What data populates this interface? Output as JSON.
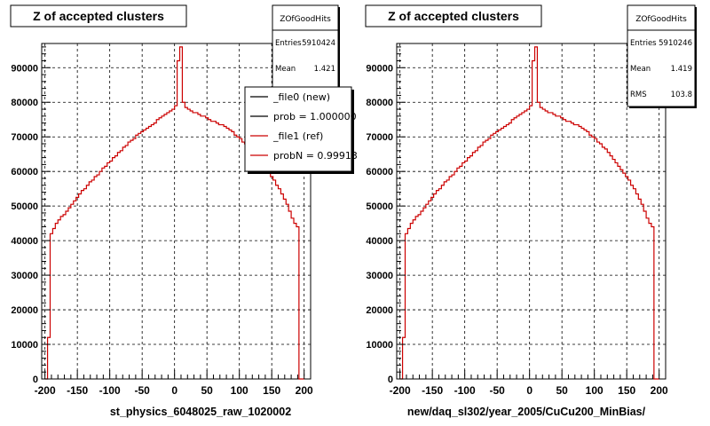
{
  "panels": [
    {
      "title": "Z of accepted clusters",
      "subtitle": "st_physics_6048025_raw_1020002",
      "stats": {
        "name": "ZOfGoodHits",
        "rows": [
          {
            "label": "Entries",
            "value": "5910424"
          },
          {
            "label": "Mean",
            "value": "1.421"
          }
        ]
      },
      "legend": [
        {
          "label": "_file0 (new)",
          "color": "#000000"
        },
        {
          "label": "prob = 1.000000",
          "color": "#000000"
        },
        {
          "label": "_file1 (ref)",
          "color": "#cc0000"
        },
        {
          "label": "probN = 0.99913",
          "color": "#cc0000"
        }
      ]
    },
    {
      "title": "Z of accepted clusters",
      "subtitle": "new/daq_sl302/year_2005/CuCu200_MinBias/",
      "stats": {
        "name": "ZOfGoodHits",
        "rows": [
          {
            "label": "Entries",
            "value": "5910246"
          },
          {
            "label": "Mean",
            "value": "1.419"
          },
          {
            "label": "RMS",
            "value": "103.8"
          }
        ]
      },
      "legend": []
    }
  ],
  "chart_data": [
    {
      "type": "histogram-step",
      "title": "Z of accepted clusters",
      "xlabel": "st_physics_6048025_raw_1020002",
      "ylabel": "",
      "xlim": [
        -205,
        210
      ],
      "ylim": [
        0,
        97000
      ],
      "xticks": [
        -200,
        -150,
        -100,
        -50,
        0,
        50,
        100,
        150,
        200
      ],
      "yticks": [
        0,
        10000,
        20000,
        30000,
        40000,
        50000,
        60000,
        70000,
        80000,
        90000
      ],
      "ytick_labels": [
        "0",
        "10000",
        "20000",
        "30000",
        "40000",
        "50000",
        "60000",
        "70000",
        "80000",
        "90000"
      ],
      "grid": true,
      "series": [
        {
          "color": "#cc0000",
          "bin_width": 4,
          "x_start": -200,
          "values": [
            0,
            12000,
            42000,
            43500,
            45000,
            46000,
            47000,
            47500,
            48500,
            49500,
            50500,
            51500,
            52500,
            53500,
            54500,
            55000,
            56000,
            57000,
            57500,
            58500,
            59000,
            60000,
            61000,
            61500,
            62500,
            63000,
            64000,
            64500,
            65500,
            66000,
            67000,
            67500,
            68500,
            69000,
            69500,
            70500,
            71000,
            71500,
            72000,
            72500,
            73000,
            73500,
            74000,
            75000,
            75500,
            76000,
            76500,
            77000,
            77500,
            78000,
            79000,
            92000,
            96000,
            80000,
            78500,
            78000,
            77500,
            77000,
            77000,
            76500,
            76000,
            76000,
            75500,
            75000,
            74500,
            74500,
            74000,
            73500,
            73500,
            73000,
            72500,
            72000,
            71500,
            70500,
            70000,
            69500,
            68500,
            68000,
            67000,
            66500,
            65500,
            64500,
            63500,
            62500,
            61500,
            60500,
            59500,
            58500,
            57500,
            56000,
            55000,
            53500,
            52000,
            50500,
            48500,
            46500,
            45000,
            44000,
            0,
            0
          ]
        }
      ]
    },
    {
      "type": "histogram-step",
      "title": "Z of accepted clusters",
      "xlabel": "new/daq_sl302/year_2005/CuCu200_MinBias/",
      "ylabel": "",
      "xlim": [
        -205,
        210
      ],
      "ylim": [
        0,
        97000
      ],
      "xticks": [
        -200,
        -150,
        -100,
        -50,
        0,
        50,
        100,
        150,
        200
      ],
      "yticks": [
        0,
        10000,
        20000,
        30000,
        40000,
        50000,
        60000,
        70000,
        80000,
        90000
      ],
      "ytick_labels": [
        "0",
        "10000",
        "20000",
        "30000",
        "40000",
        "50000",
        "60000",
        "70000",
        "80000",
        "90000"
      ],
      "grid": true,
      "series": [
        {
          "color": "#cc0000",
          "bin_width": 4,
          "x_start": -200,
          "values": [
            0,
            12000,
            42000,
            43500,
            45000,
            46000,
            47000,
            47500,
            48500,
            49500,
            50500,
            51500,
            52500,
            53500,
            54500,
            55000,
            56000,
            57000,
            57500,
            58500,
            59000,
            60000,
            61000,
            61500,
            62500,
            63000,
            64000,
            64500,
            65500,
            66000,
            67000,
            67500,
            68500,
            69000,
            69500,
            70500,
            71000,
            71500,
            72000,
            72500,
            73000,
            73500,
            74000,
            75000,
            75500,
            76000,
            76500,
            77000,
            77500,
            78000,
            79000,
            92000,
            96000,
            80000,
            78500,
            78000,
            77500,
            77000,
            77000,
            76500,
            76000,
            76000,
            75500,
            75000,
            74500,
            74500,
            74000,
            73500,
            73500,
            73000,
            72500,
            72000,
            71500,
            70500,
            70000,
            69500,
            68500,
            68000,
            67000,
            66500,
            65500,
            64500,
            63500,
            62500,
            61500,
            60500,
            59500,
            58500,
            57500,
            56000,
            55000,
            53500,
            52000,
            50500,
            48500,
            46500,
            45000,
            44000,
            0,
            0
          ]
        }
      ]
    }
  ]
}
